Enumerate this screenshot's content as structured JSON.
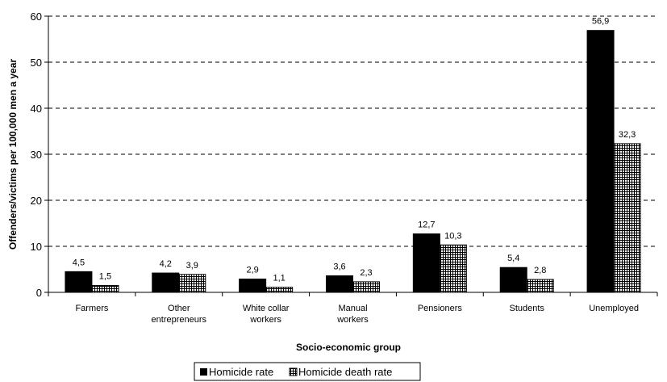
{
  "chart_data": {
    "type": "bar",
    "categories": [
      [
        "Farmers"
      ],
      [
        "Other",
        "entrepreneurs"
      ],
      [
        "White collar",
        "workers"
      ],
      [
        "Manual",
        "workers"
      ],
      [
        "Pensioners"
      ],
      [
        "Students"
      ],
      [
        "Unemployed"
      ]
    ],
    "series": [
      {
        "name": "Homicide rate",
        "values": [
          4.5,
          4.2,
          2.9,
          3.6,
          12.7,
          5.4,
          56.9
        ],
        "labels": [
          "4,5",
          "4,2",
          "2,9",
          "3,6",
          "12,7",
          "5,4",
          "56,9"
        ],
        "color": "#000000",
        "pattern": "solid"
      },
      {
        "name": "Homicide death rate",
        "values": [
          1.5,
          3.9,
          1.1,
          2.3,
          10.3,
          2.8,
          32.3
        ],
        "labels": [
          "1,5",
          "3,9",
          "1,1",
          "2,3",
          "10,3",
          "2,8",
          "32,3"
        ],
        "color": "#000000",
        "pattern": "grid"
      }
    ],
    "xlabel": "Socio-economic group",
    "ylabel": "Offenders/victims per 100,000 men a year",
    "ylim": [
      0,
      60
    ],
    "yticks": [
      0,
      10,
      20,
      30,
      40,
      50,
      60
    ],
    "grid": true,
    "legend": "bottom"
  }
}
